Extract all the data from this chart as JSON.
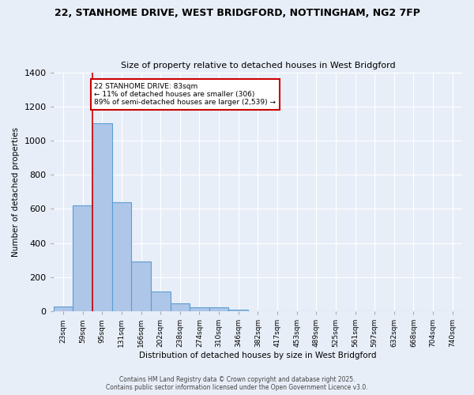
{
  "title_line1": "22, STANHOME DRIVE, WEST BRIDGFORD, NOTTINGHAM, NG2 7FP",
  "title_line2": "Size of property relative to detached houses in West Bridgford",
  "xlabel": "Distribution of detached houses by size in West Bridgford",
  "ylabel": "Number of detached properties",
  "categories": [
    "23sqm",
    "59sqm",
    "95sqm",
    "131sqm",
    "166sqm",
    "202sqm",
    "238sqm",
    "274sqm",
    "310sqm",
    "346sqm",
    "382sqm",
    "417sqm",
    "453sqm",
    "489sqm",
    "525sqm",
    "561sqm",
    "597sqm",
    "632sqm",
    "668sqm",
    "704sqm",
    "740sqm"
  ],
  "bar_heights": [
    28,
    622,
    1100,
    638,
    290,
    118,
    47,
    22,
    22,
    10,
    0,
    0,
    0,
    0,
    0,
    0,
    0,
    0,
    0,
    0,
    0
  ],
  "bar_color": "#aec6e8",
  "bar_edge_color": "#5a9fd4",
  "background_color": "#e8eef8",
  "grid_color": "#ffffff",
  "marker_label": "22 STANHOME DRIVE: 83sqm\n← 11% of detached houses are smaller (306)\n89% of semi-detached houses are larger (2,539) →",
  "annotation_box_color": "#ffffff",
  "annotation_box_edge": "#cc0000",
  "vline_x": 1.5,
  "vline_color": "#cc0000",
  "ylim": [
    0,
    1400
  ],
  "yticks": [
    0,
    200,
    400,
    600,
    800,
    1000,
    1200,
    1400
  ],
  "footer_line1": "Contains HM Land Registry data © Crown copyright and database right 2025.",
  "footer_line2": "Contains public sector information licensed under the Open Government Licence v3.0."
}
